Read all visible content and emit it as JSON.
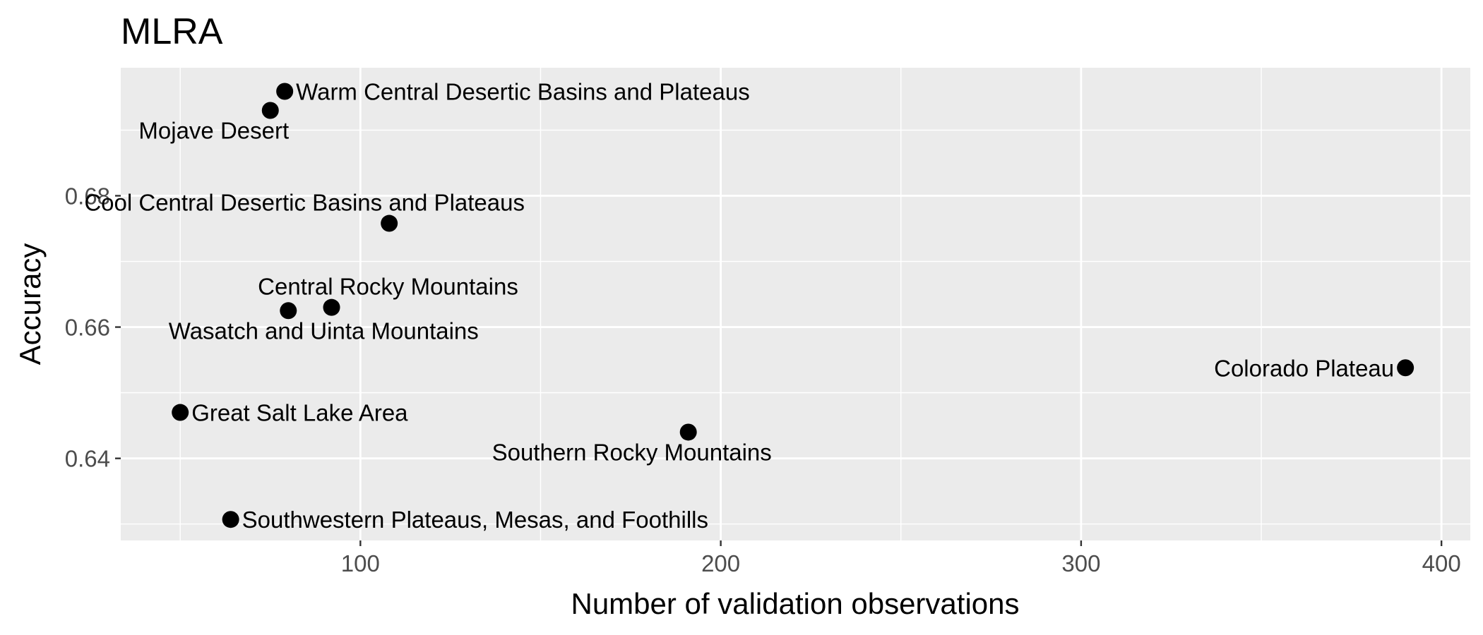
{
  "chart_data": {
    "type": "scatter",
    "title": "MLRA",
    "xlabel": "Number of validation observations",
    "ylabel": "Accuracy",
    "xlim": [
      33.5,
      408
    ],
    "ylim": [
      0.6275,
      0.6995
    ],
    "x_ticks": [
      100,
      200,
      300,
      400
    ],
    "y_ticks": [
      0.64,
      0.66,
      0.68
    ],
    "x_tick_labels": [
      "100",
      "200",
      "300",
      "400"
    ],
    "y_tick_labels": [
      "0.64",
      "0.66",
      "0.68"
    ],
    "grid": true,
    "colors": {
      "panel": "#ebebeb",
      "grid": "#ffffff",
      "point": "#000000",
      "tick_text": "#4d4d4d"
    },
    "points": [
      {
        "label": "Warm Central Desertic Basins and Plateaus",
        "x": 79,
        "y": 0.6959,
        "label_pos": "right"
      },
      {
        "label": "Mojave Desert",
        "x": 75,
        "y": 0.693,
        "label_pos": "below-left"
      },
      {
        "label": "Cool Central Desertic Basins and Plateaus",
        "x": 108,
        "y": 0.6758,
        "label_pos": "above-left"
      },
      {
        "label": "Central Rocky Mountains",
        "x": 92,
        "y": 0.663,
        "label_pos": "above"
      },
      {
        "label": "Wasatch and Uinta Mountains",
        "x": 80,
        "y": 0.6625,
        "label_pos": "below-right"
      },
      {
        "label": "Colorado Plateau",
        "x": 390,
        "y": 0.6538,
        "label_pos": "left"
      },
      {
        "label": "Great Salt Lake Area",
        "x": 50,
        "y": 0.647,
        "label_pos": "right"
      },
      {
        "label": "Southern Rocky Mountains",
        "x": 191,
        "y": 0.644,
        "label_pos": "below-left"
      },
      {
        "label": "Southwestern Plateaus, Mesas, and Foothills",
        "x": 64,
        "y": 0.6307,
        "label_pos": "right"
      }
    ]
  }
}
